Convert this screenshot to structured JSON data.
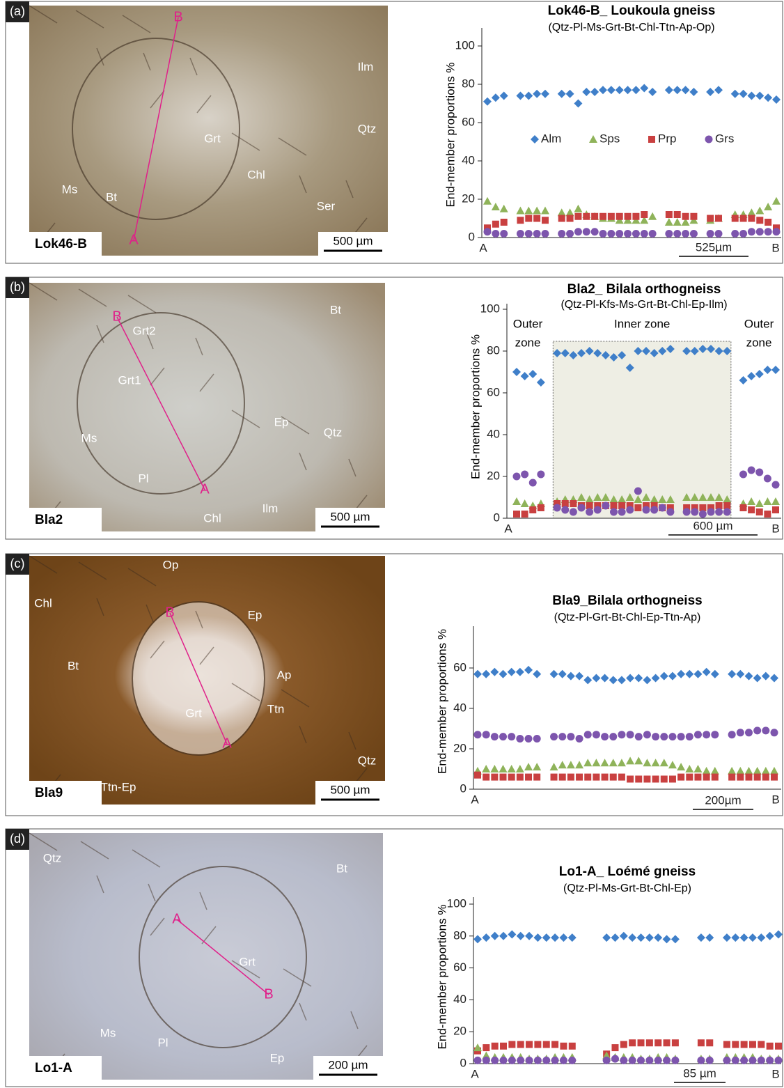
{
  "panels": [
    {
      "label": "(a)",
      "image": {
        "sample": "Lok46-B",
        "scale_bar": "500 µm",
        "profile_ends": [
          "A",
          "B"
        ],
        "minerals": [
          "Ilm",
          "Qtz",
          "Grt",
          "Chl",
          "Ms",
          "Bt",
          "Ser"
        ]
      },
      "chart_data": {
        "type": "scatter",
        "title": "Lok46-B_ Loukoula gneiss",
        "subtitle": "(Qtz-Pl-Ms-Grt-Bt-Chl-Ttn-Ap-Op)",
        "y_label": "End-member proportions %",
        "x_end_labels": [
          "A",
          "B"
        ],
        "scale_bar": "525µm",
        "ylim": [
          0,
          100
        ],
        "yticks": [
          0,
          20,
          40,
          60,
          80,
          100
        ],
        "legend": "middle",
        "series": [
          {
            "name": "Alm",
            "color": "#3f7fc9",
            "marker": "diamond",
            "values": [
              71,
              73,
              74,
              null,
              74,
              74,
              75,
              75,
              null,
              75,
              75,
              70,
              76,
              76,
              77,
              77,
              77,
              77,
              77,
              78,
              76,
              null,
              77,
              77,
              77,
              76,
              null,
              76,
              77,
              null,
              75,
              75,
              74,
              74,
              73,
              72
            ]
          },
          {
            "name": "Sps",
            "color": "#8fb35a",
            "marker": "triangle",
            "values": [
              19,
              16,
              15,
              null,
              14,
              14,
              14,
              14,
              null,
              13,
              13,
              15,
              12,
              11,
              10,
              10,
              9,
              9,
              9,
              9,
              11,
              null,
              8,
              8,
              8,
              9,
              null,
              9,
              10,
              null,
              12,
              12,
              13,
              14,
              16,
              19
            ]
          },
          {
            "name": "Prp",
            "color": "#c94040",
            "marker": "square",
            "values": [
              5,
              7,
              8,
              null,
              9,
              10,
              10,
              9,
              null,
              10,
              10,
              11,
              11,
              11,
              11,
              11,
              11,
              11,
              11,
              12,
              null,
              null,
              12,
              12,
              11,
              11,
              null,
              10,
              10,
              null,
              10,
              10,
              10,
              9,
              8,
              5
            ]
          },
          {
            "name": "Grs",
            "color": "#7d55ad",
            "marker": "circle",
            "values": [
              3,
              2,
              2,
              null,
              2,
              2,
              2,
              2,
              null,
              2,
              2,
              3,
              3,
              3,
              2,
              2,
              2,
              2,
              2,
              2,
              2,
              null,
              2,
              2,
              2,
              2,
              null,
              2,
              2,
              null,
              2,
              2,
              3,
              3,
              3,
              3
            ]
          }
        ]
      }
    },
    {
      "label": "(b)",
      "image": {
        "sample": "Bla2",
        "scale_bar": "500 µm",
        "profile_ends": [
          "A",
          "B"
        ],
        "minerals": [
          "Bt",
          "Grt2",
          "Grt1",
          "Ep",
          "Qtz",
          "Ms",
          "Pl",
          "Chl",
          "Ilm"
        ]
      },
      "chart_data": {
        "type": "scatter",
        "title": "Bla2_ Bilala orthogneiss",
        "subtitle": "(Qtz-Pl-Kfs-Ms-Grt-Bt-Chl-Ep-Ilm)",
        "y_label": "End-member proportions %",
        "x_end_labels": [
          "A",
          "B"
        ],
        "scale_bar": "600 µm",
        "zone_labels": [
          [
            "Outer",
            "zone"
          ],
          [
            "Inner zone"
          ],
          [
            "Outer",
            "zone"
          ]
        ],
        "ylim": [
          0,
          100
        ],
        "yticks": [
          0,
          20,
          40,
          60,
          80,
          100
        ],
        "series": [
          {
            "color": "#3f7fc9",
            "marker": "diamond",
            "values": [
              70,
              68,
              69,
              65,
              null,
              79,
              79,
              78,
              79,
              80,
              79,
              78,
              77,
              78,
              72,
              80,
              80,
              79,
              80,
              81,
              null,
              80,
              80,
              81,
              81,
              80,
              80,
              null,
              66,
              68,
              69,
              71,
              71
            ]
          },
          {
            "color": "#8fb35a",
            "marker": "triangle",
            "values": [
              8,
              7,
              6,
              7,
              null,
              8,
              9,
              9,
              10,
              9,
              10,
              10,
              9,
              9,
              10,
              9,
              10,
              9,
              9,
              9,
              null,
              10,
              10,
              10,
              10,
              10,
              9,
              null,
              7,
              8,
              7,
              8,
              8
            ]
          },
          {
            "color": "#c94040",
            "marker": "square",
            "values": [
              2,
              2,
              4,
              5,
              null,
              7,
              7,
              7,
              6,
              6,
              6,
              6,
              6,
              6,
              6,
              5,
              6,
              6,
              5,
              5,
              null,
              5,
              5,
              5,
              5,
              6,
              6,
              null,
              5,
              4,
              3,
              2,
              4
            ]
          },
          {
            "color": "#7d55ad",
            "marker": "circle",
            "values": [
              20,
              21,
              17,
              21,
              null,
              5,
              4,
              3,
              5,
              3,
              4,
              6,
              3,
              3,
              4,
              13,
              4,
              4,
              5,
              3,
              null,
              3,
              3,
              2,
              3,
              3,
              3,
              null,
              21,
              23,
              22,
              19,
              16
            ]
          }
        ]
      }
    },
    {
      "label": "(c)",
      "image": {
        "sample": "Bla9",
        "scale_bar": "500 µm",
        "profile_ends": [
          "A",
          "B"
        ],
        "minerals": [
          "Op",
          "Chl",
          "Ep",
          "Bt",
          "Ap",
          "Ttn",
          "Grt",
          "Qtz",
          "Ttn-Ep"
        ]
      },
      "chart_data": {
        "type": "scatter",
        "title": "Bla9_Bilala orthogneiss",
        "subtitle": "(Qtz-Pl-Grt-Bt-Chl-Ep-Ttn-Ap)",
        "y_label": "End-member proportions %",
        "x_end_labels": [
          "A",
          "B"
        ],
        "scale_bar": "200µm",
        "ylim": [
          0,
          80
        ],
        "yticks": [
          0,
          20,
          40,
          60
        ],
        "series": [
          {
            "color": "#3f7fc9",
            "marker": "diamond",
            "values": [
              57,
              57,
              58,
              57,
              58,
              58,
              59,
              57,
              null,
              57,
              57,
              56,
              56,
              54,
              55,
              55,
              54,
              54,
              55,
              55,
              54,
              55,
              56,
              56,
              57,
              57,
              57,
              58,
              57,
              null,
              57,
              57,
              56,
              55,
              56,
              55
            ]
          },
          {
            "color": "#7d55ad",
            "marker": "circle",
            "values": [
              27,
              27,
              26,
              26,
              26,
              25,
              25,
              25,
              null,
              26,
              26,
              26,
              25,
              27,
              27,
              26,
              26,
              27,
              27,
              26,
              27,
              26,
              26,
              26,
              26,
              26,
              27,
              27,
              27,
              null,
              27,
              28,
              28,
              29,
              29,
              28
            ]
          },
          {
            "color": "#8fb35a",
            "marker": "triangle",
            "values": [
              9,
              10,
              10,
              10,
              10,
              10,
              11,
              11,
              null,
              11,
              12,
              12,
              12,
              13,
              13,
              13,
              13,
              13,
              14,
              14,
              13,
              13,
              13,
              12,
              11,
              10,
              10,
              9,
              9,
              null,
              9,
              9,
              9,
              9,
              9,
              9
            ]
          },
          {
            "color": "#c94040",
            "marker": "square",
            "values": [
              7,
              6,
              6,
              6,
              6,
              6,
              6,
              6,
              null,
              6,
              6,
              6,
              6,
              6,
              6,
              6,
              6,
              6,
              5,
              5,
              5,
              5,
              5,
              5,
              6,
              6,
              6,
              6,
              6,
              null,
              6,
              6,
              6,
              6,
              6,
              6
            ]
          }
        ]
      }
    },
    {
      "label": "(d)",
      "image": {
        "sample": "Lo1-A",
        "scale_bar": "200 µm",
        "profile_ends": [
          "A",
          "B"
        ],
        "minerals": [
          "Qtz",
          "Bt",
          "Grt",
          "Ms",
          "Pl",
          "Ep"
        ]
      },
      "chart_data": {
        "type": "scatter",
        "title": "Lo1-A_ Loémé gneiss",
        "subtitle": "(Qtz-Pl-Ms-Grt-Bt-Chl-Ep)",
        "y_label": "End-member proportions %",
        "x_end_labels": [
          "A",
          "B"
        ],
        "scale_bar": "85 µm",
        "ylim": [
          0,
          100
        ],
        "yticks": [
          0,
          20,
          40,
          60,
          80,
          100
        ],
        "series": [
          {
            "color": "#3f7fc9",
            "marker": "diamond",
            "values": [
              78,
              79,
              80,
              80,
              81,
              80,
              80,
              79,
              79,
              79,
              79,
              79,
              null,
              null,
              null,
              79,
              79,
              80,
              79,
              79,
              79,
              79,
              78,
              78,
              null,
              null,
              79,
              79,
              null,
              79,
              79,
              79,
              79,
              79,
              80,
              81
            ]
          },
          {
            "color": "#c94040",
            "marker": "square",
            "values": [
              8,
              10,
              11,
              11,
              12,
              12,
              12,
              12,
              12,
              12,
              11,
              11,
              null,
              null,
              null,
              6,
              10,
              12,
              13,
              13,
              13,
              13,
              13,
              13,
              null,
              null,
              13,
              13,
              null,
              12,
              12,
              12,
              12,
              12,
              11,
              11
            ]
          },
          {
            "color": "#8fb35a",
            "marker": "triangle",
            "values": [
              10,
              5,
              4,
              4,
              4,
              4,
              3,
              3,
              3,
              4,
              4,
              4,
              null,
              null,
              null,
              5,
              4,
              4,
              4,
              3,
              3,
              4,
              4,
              3,
              null,
              null,
              3,
              3,
              null,
              4,
              4,
              4,
              4,
              3,
              3,
              3
            ]
          },
          {
            "color": "#7d55ad",
            "marker": "circle",
            "values": [
              2,
              2,
              2,
              2,
              2,
              2,
              2,
              2,
              2,
              2,
              2,
              2,
              null,
              null,
              null,
              2,
              3,
              2,
              2,
              2,
              2,
              2,
              2,
              2,
              null,
              null,
              2,
              2,
              null,
              2,
              2,
              2,
              2,
              2,
              2,
              2
            ]
          }
        ]
      }
    }
  ]
}
